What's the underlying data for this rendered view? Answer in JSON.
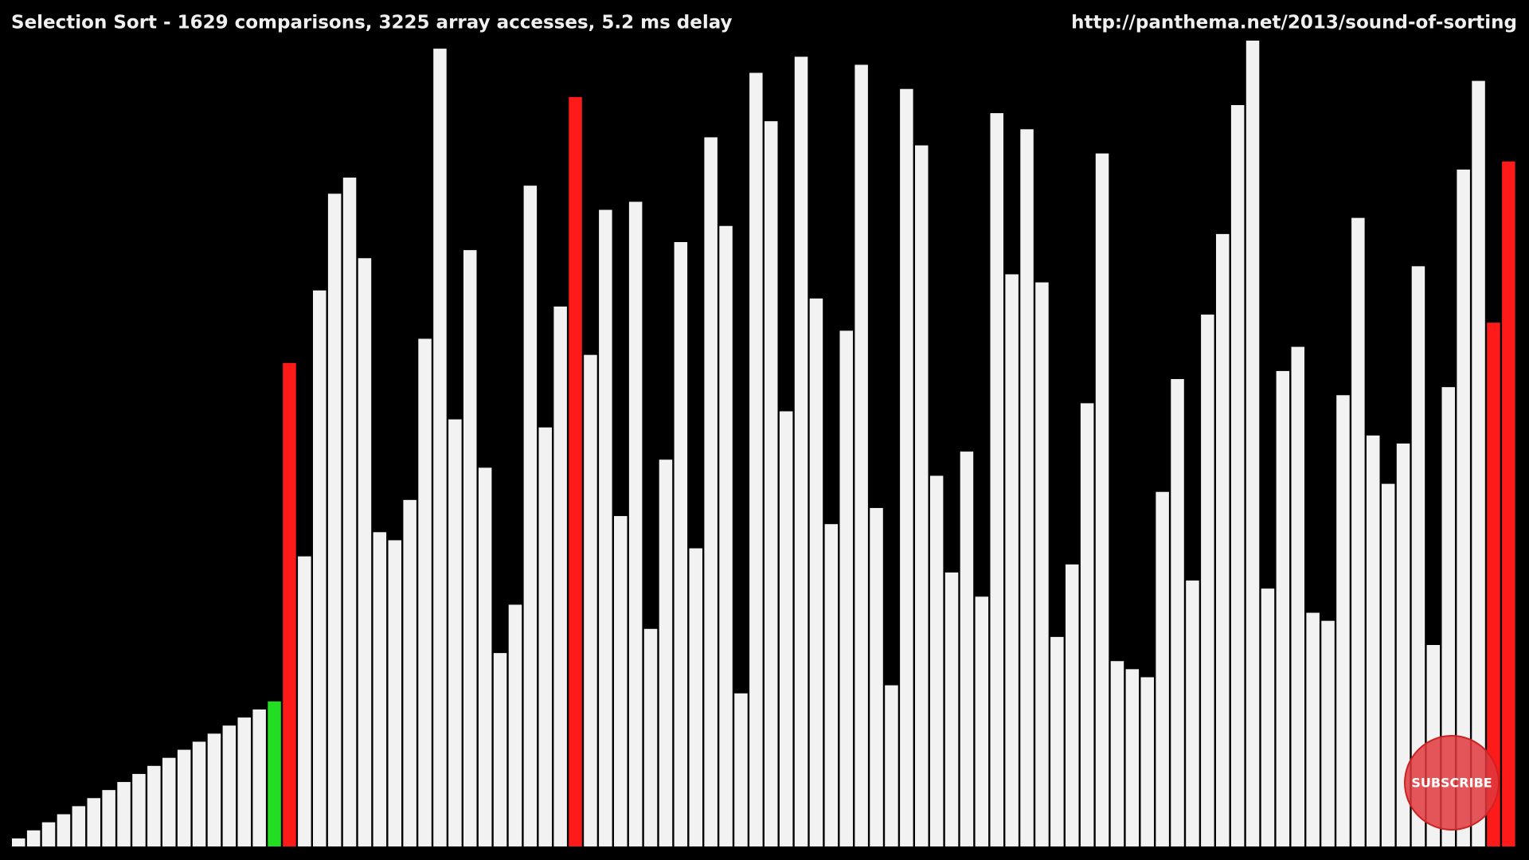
{
  "chart_data": {
    "type": "bar",
    "title": "Selection Sort - 1629 comparisons, 3225 array accesses, 5.2 ms delay",
    "source_url": "http://panthema.net/2013/sound-of-sorting",
    "overlay_button": "SUBSCRIBE",
    "values": [
      1,
      2,
      3,
      4,
      5,
      6,
      7,
      8,
      9,
      10,
      11,
      12,
      13,
      14,
      15,
      16,
      17,
      18,
      60,
      36,
      69,
      81,
      83,
      73,
      39,
      38,
      43,
      63,
      99,
      53,
      74,
      47,
      24,
      30,
      82,
      52,
      67,
      93,
      61,
      79,
      41,
      80,
      27,
      48,
      75,
      37,
      88,
      77,
      19,
      96,
      90,
      54,
      98,
      68,
      40,
      64,
      97,
      42,
      20,
      94,
      87,
      46,
      34,
      49,
      31,
      91,
      71,
      89,
      70,
      26,
      35,
      55,
      86,
      23,
      22,
      21,
      44,
      58,
      33,
      66,
      76,
      92,
      100,
      32,
      59,
      62,
      29,
      28,
      56,
      78,
      51,
      45,
      50,
      72,
      25,
      57,
      84,
      95,
      65,
      85
    ],
    "colors": [
      "#f2f2f2",
      "#f2f2f2",
      "#f2f2f2",
      "#f2f2f2",
      "#f2f2f2",
      "#f2f2f2",
      "#f2f2f2",
      "#f2f2f2",
      "#f2f2f2",
      "#f2f2f2",
      "#f2f2f2",
      "#f2f2f2",
      "#f2f2f2",
      "#f2f2f2",
      "#f2f2f2",
      "#f2f2f2",
      "#f2f2f2",
      "#22dd22",
      "#ff1a1a",
      "#f2f2f2",
      "#f2f2f2",
      "#f2f2f2",
      "#f2f2f2",
      "#f2f2f2",
      "#f2f2f2",
      "#f2f2f2",
      "#f2f2f2",
      "#f2f2f2",
      "#f2f2f2",
      "#f2f2f2",
      "#f2f2f2",
      "#f2f2f2",
      "#f2f2f2",
      "#f2f2f2",
      "#f2f2f2",
      "#f2f2f2",
      "#f2f2f2",
      "#ff1a1a",
      "#f2f2f2",
      "#f2f2f2",
      "#f2f2f2",
      "#f2f2f2",
      "#f2f2f2",
      "#f2f2f2",
      "#f2f2f2",
      "#f2f2f2",
      "#f2f2f2",
      "#f2f2f2",
      "#f2f2f2",
      "#f2f2f2",
      "#f2f2f2",
      "#f2f2f2",
      "#f2f2f2",
      "#f2f2f2",
      "#f2f2f2",
      "#f2f2f2",
      "#f2f2f2",
      "#f2f2f2",
      "#f2f2f2",
      "#f2f2f2",
      "#f2f2f2",
      "#f2f2f2",
      "#f2f2f2",
      "#f2f2f2",
      "#f2f2f2",
      "#f2f2f2",
      "#f2f2f2",
      "#f2f2f2",
      "#f2f2f2",
      "#f2f2f2",
      "#f2f2f2",
      "#f2f2f2",
      "#f2f2f2",
      "#f2f2f2",
      "#f2f2f2",
      "#f2f2f2",
      "#f2f2f2",
      "#f2f2f2",
      "#f2f2f2",
      "#f2f2f2",
      "#f2f2f2",
      "#f2f2f2",
      "#f2f2f2",
      "#f2f2f2",
      "#f2f2f2",
      "#f2f2f2",
      "#f2f2f2",
      "#f2f2f2",
      "#f2f2f2",
      "#f2f2f2",
      "#f2f2f2",
      "#f2f2f2",
      "#f2f2f2",
      "#f2f2f2",
      "#f2f2f2",
      "#f2f2f2",
      "#f2f2f2",
      "#f2f2f2",
      "#ff1a1a",
      "#ff1a1a"
    ]
  }
}
